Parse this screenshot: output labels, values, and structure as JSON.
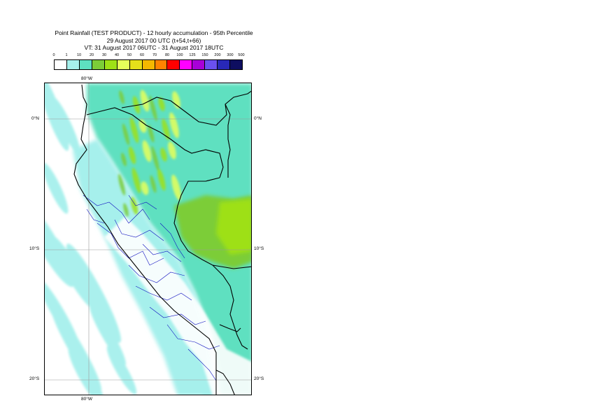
{
  "title": {
    "line1": "Point Rainfall (TEST PRODUCT) - 12 hourly accumulation - 95th Percentile",
    "line2": "29 August 2017 00 UTC (t+54,t+66)",
    "line3": "VT: 31 August 2017 06UTC - 31 August 2017 18UTC"
  },
  "legend": {
    "ticks": [
      "0",
      "1",
      "10",
      "20",
      "30",
      "40",
      "50",
      "60",
      "70",
      "80",
      "100",
      "125",
      "150",
      "200",
      "300",
      "500"
    ],
    "colors": [
      "#ffffff",
      "#a6f0ec",
      "#5ee0c0",
      "#7ccd38",
      "#9ee016",
      "#e6ff5a",
      "#e6e01a",
      "#f5b800",
      "#ff8200",
      "#ff0000",
      "#ff00ff",
      "#a800d8",
      "#6a50f0",
      "#2828b8",
      "#0e0e60"
    ]
  },
  "axes": {
    "lon_top": "80°W",
    "lon_bottom": "80°W",
    "lat_0_left": "0°N",
    "lat_0_right": "0°N",
    "lat_10_left": "10°S",
    "lat_10_right": "10°S",
    "lat_20_left": "20°S",
    "lat_20_right": "20°S"
  },
  "map": {
    "extent_lon": [
      -85,
      -68
    ],
    "extent_lat": [
      -21,
      3
    ],
    "gridlines_lon": [
      -80
    ],
    "gridlines_lat": [
      0,
      -10,
      -20
    ],
    "colors": {
      "ocean_light": "#a6f0ec",
      "land_medium": "#5ee0c0",
      "green_heavy": "#7ccd38",
      "yellow_green": "#9ee016",
      "yellow": "#e6ff5a",
      "dry": "#ffffff",
      "country_border": "#000000",
      "region_border": "#0000cc"
    }
  }
}
